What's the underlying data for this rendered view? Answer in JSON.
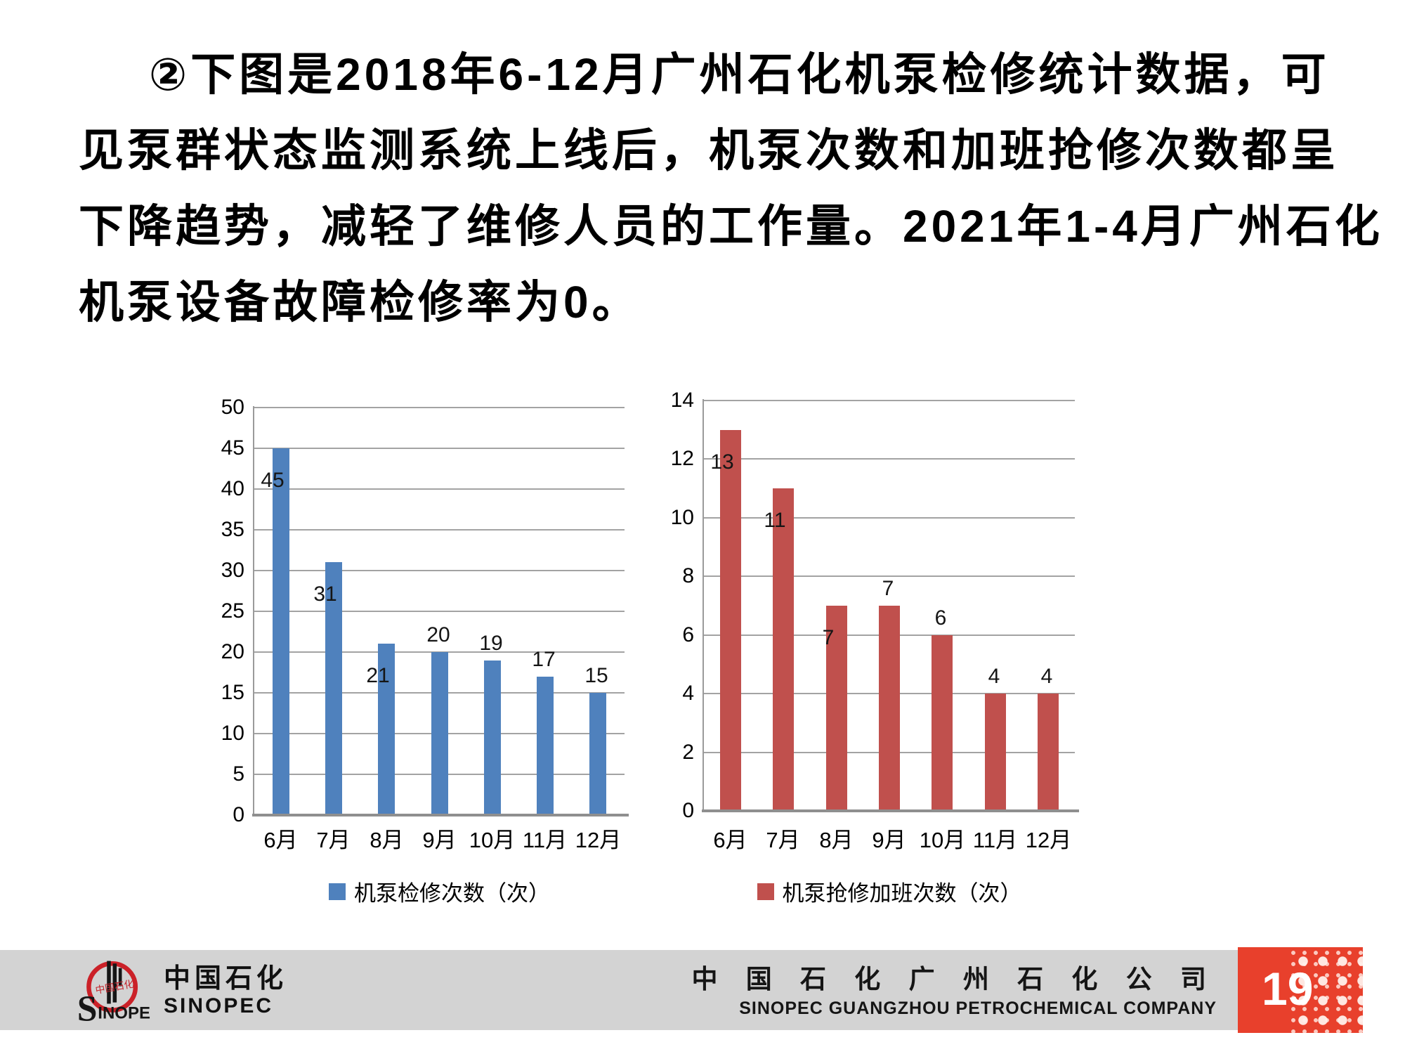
{
  "title": {
    "lines": [
      "②下图是2018年6-12月广州石化机泵检修统计数据，可",
      "见泵群状态监测系统上线后，机泵次数和加班抢修次数都呈",
      "下降趋势，减轻了维修人员的工作量。2021年1-4月广州石化",
      "机泵设备故障检修率为0。"
    ]
  },
  "chart_data": [
    {
      "type": "bar",
      "name": "pump-maintenance-count",
      "categories": [
        "6月",
        "7月",
        "8月",
        "9月",
        "10月",
        "11月",
        "12月"
      ],
      "values": [
        45,
        31,
        21,
        20,
        19,
        17,
        15
      ],
      "label_positions": [
        "in",
        "in",
        "in",
        "out",
        "out",
        "out",
        "out"
      ],
      "yticks": [
        0,
        5,
        10,
        15,
        20,
        25,
        30,
        35,
        40,
        45,
        50
      ],
      "ylim": [
        0,
        50
      ],
      "grid": true,
      "bar_color": "#4f81bd",
      "legend": "机泵检修次数（次）",
      "legend_position": "bottom",
      "title": "",
      "xlabel": "",
      "ylabel": ""
    },
    {
      "type": "bar",
      "name": "pump-emergency-overtime-count",
      "categories": [
        "6月",
        "7月",
        "8月",
        "9月",
        "10月",
        "11月",
        "12月"
      ],
      "values": [
        13,
        11,
        7,
        7,
        6,
        4,
        4
      ],
      "label_positions": [
        "in",
        "in",
        "in",
        "out",
        "out",
        "out",
        "out"
      ],
      "yticks": [
        0,
        2,
        4,
        6,
        8,
        10,
        12,
        14
      ],
      "ylim": [
        0,
        14
      ],
      "grid": true,
      "bar_color": "#c0504d",
      "legend": "机泵抢修加班次数（次）",
      "legend_position": "bottom",
      "title": "",
      "xlabel": "",
      "ylabel": ""
    }
  ],
  "footer": {
    "logo_cn": "中国石化",
    "logo_en": "SINOPEC",
    "company_cn": "中 国 石 化 广 州 石 化 公 司",
    "company_en": "SINOPEC GUANGZHOU  PETROCHEMICAL COMPANY",
    "page_number": "19",
    "accent_color": "#e8402c"
  }
}
